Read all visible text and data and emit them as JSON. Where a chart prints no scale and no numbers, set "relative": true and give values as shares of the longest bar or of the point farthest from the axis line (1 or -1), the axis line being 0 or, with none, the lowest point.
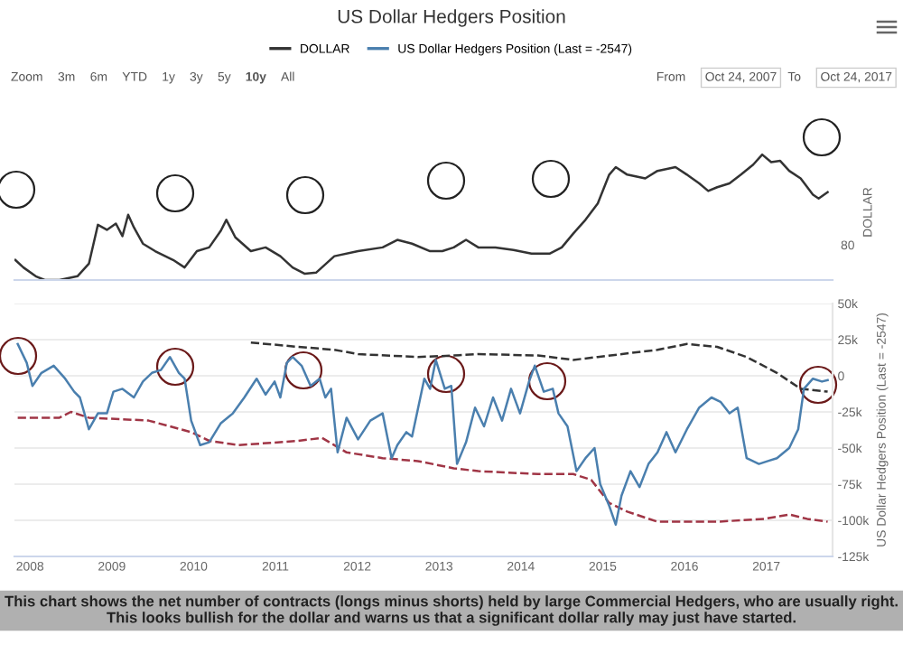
{
  "chart_data": [
    {
      "type": "line",
      "title": "US Dollar Hedgers Position",
      "ylabel": "DOLLAR",
      "relative": true,
      "legend": "top",
      "tick_labels": false,
      "annotations": [
        "80",
        "Zoom",
        "3m",
        "6m",
        "YTD",
        "1y",
        "3y",
        "5y",
        "10y",
        "All",
        "From",
        "Oct 24, 2007",
        "To",
        "Oct 24, 2017"
      ],
      "xlim": [
        2007.81,
        2017.81
      ],
      "xticks": [
        2008,
        2009,
        2010,
        2011,
        2012,
        2013,
        2014,
        2015,
        2016,
        2017
      ],
      "series": [
        {
          "name": "DOLLAR",
          "color": "#333333",
          "line_style": "solid",
          "x": [
            2007.82,
            2007.92,
            2008.07,
            2008.18,
            2008.36,
            2008.58,
            2008.72,
            2008.83,
            2008.94,
            2009.05,
            2009.13,
            2009.2,
            2009.27,
            2009.38,
            2009.53,
            2009.75,
            2009.89,
            2010.04,
            2010.19,
            2010.33,
            2010.4,
            2010.51,
            2010.7,
            2010.88,
            2011.06,
            2011.21,
            2011.36,
            2011.5,
            2011.72,
            2012.01,
            2012.31,
            2012.49,
            2012.67,
            2012.89,
            2013.04,
            2013.18,
            2013.33,
            2013.48,
            2013.69,
            2013.91,
            2014.13,
            2014.35,
            2014.5,
            2014.64,
            2014.79,
            2014.94,
            2015.08,
            2015.16,
            2015.3,
            2015.52,
            2015.67,
            2015.89,
            2016.03,
            2016.18,
            2016.29,
            2016.4,
            2016.55,
            2016.69,
            2016.84,
            2016.95,
            2017.06,
            2017.17,
            2017.28,
            2017.42,
            2017.57,
            2017.64,
            2017.75
          ],
          "values": [
            0.16,
            0.1,
            0.03,
            0,
            0,
            0.03,
            0.13,
            0.44,
            0.4,
            0.45,
            0.35,
            0.52,
            0.42,
            0.29,
            0.23,
            0.16,
            0.1,
            0.23,
            0.26,
            0.39,
            0.48,
            0.34,
            0.23,
            0.26,
            0.19,
            0.1,
            0.05,
            0.06,
            0.19,
            0.23,
            0.26,
            0.32,
            0.29,
            0.23,
            0.23,
            0.26,
            0.32,
            0.26,
            0.26,
            0.24,
            0.21,
            0.21,
            0.26,
            0.37,
            0.48,
            0.61,
            0.84,
            0.9,
            0.84,
            0.81,
            0.87,
            0.9,
            0.84,
            0.77,
            0.71,
            0.74,
            0.77,
            0.84,
            0.92,
            1,
            0.94,
            0.95,
            0.87,
            0.81,
            0.68,
            0.65,
            0.7
          ]
        }
      ]
    },
    {
      "type": "line",
      "ylabel": "US Dollar Hedgers Position (Last = -2547)",
      "legend": "top",
      "grid": "y",
      "annotations": [
        "This chart shows the net number of contracts (longs minus shorts) held by large Commercial Hedgers, who are usually right. This looks bullish for the dollar and warns us that a significant dollar rally may just have started."
      ],
      "xlim": [
        2007.81,
        2017.81
      ],
      "xticks": [
        2008,
        2009,
        2010,
        2011,
        2012,
        2013,
        2014,
        2015,
        2016,
        2017
      ],
      "ylim": [
        -125000,
        50000
      ],
      "yticks": [
        {
          "value": 50000,
          "label": "50k"
        },
        {
          "value": 25000,
          "label": "25k"
        },
        0,
        {
          "value": -25000,
          "label": "-25k"
        },
        {
          "value": -50000,
          "label": "-50k"
        },
        {
          "value": -75000,
          "label": "-75k"
        },
        {
          "value": -100000,
          "label": "-100k"
        },
        {
          "value": -125000,
          "label": "-125k"
        }
      ],
      "series": [
        {
          "color": "#a03545",
          "line_style": "dashed",
          "x": [
            2007.85,
            2008.36,
            2008.5,
            2008.72,
            2009.45,
            2009.97,
            2010.19,
            2010.55,
            2011.28,
            2011.57,
            2011.87,
            2012.31,
            2012.74,
            2013.18,
            2013.48,
            2014.21,
            2014.64,
            2014.86,
            2015.08,
            2015.3,
            2015.67,
            2016.4,
            2016.98,
            2017.28,
            2017.5,
            2017.75
          ],
          "values": [
            -29000,
            -29000,
            -25000,
            -29000,
            -31000,
            -39000,
            -45000,
            -48000,
            -45000,
            -43000,
            -53000,
            -57000,
            -59000,
            -64000,
            -66000,
            -68000,
            -68000,
            -72000,
            -88000,
            -94000,
            -101000,
            -101000,
            -99000,
            -96000,
            -99000,
            -101000
          ]
        },
        {
          "color": "#333333",
          "line_style": "dashed",
          "x": [
            2010.7,
            2011.28,
            2011.72,
            2012.01,
            2012.74,
            2013.18,
            2013.48,
            2014.21,
            2014.64,
            2014.94,
            2015.67,
            2016.03,
            2016.4,
            2016.76,
            2017.13,
            2017.42,
            2017.75
          ],
          "values": [
            23000,
            20000,
            18000,
            15000,
            13000,
            14000,
            15000,
            14000,
            11000,
            13000,
            18000,
            22000,
            20000,
            13000,
            2000,
            -9000,
            -11000
          ]
        },
        {
          "name": "US Dollar Hedgers Position (Last = -2547)",
          "color": "#4a7fae",
          "line_style": "solid",
          "x": [
            2007.85,
            2007.96,
            2008.03,
            2008.14,
            2008.29,
            2008.43,
            2008.54,
            2008.61,
            2008.72,
            2008.83,
            2008.94,
            2009.02,
            2009.13,
            2009.27,
            2009.38,
            2009.49,
            2009.6,
            2009.71,
            2009.82,
            2009.89,
            2009.97,
            2010.08,
            2010.19,
            2010.33,
            2010.48,
            2010.62,
            2010.77,
            2010.88,
            2010.99,
            2011.06,
            2011.14,
            2011.21,
            2011.32,
            2011.43,
            2011.54,
            2011.61,
            2011.68,
            2011.76,
            2011.87,
            2012.01,
            2012.16,
            2012.31,
            2012.42,
            2012.49,
            2012.6,
            2012.67,
            2012.82,
            2012.89,
            2012.96,
            2013.07,
            2013.15,
            2013.22,
            2013.33,
            2013.44,
            2013.55,
            2013.66,
            2013.77,
            2013.88,
            2013.99,
            2014.1,
            2014.17,
            2014.28,
            2014.39,
            2014.46,
            2014.57,
            2014.68,
            2014.79,
            2014.9,
            2014.97,
            2015.08,
            2015.16,
            2015.23,
            2015.34,
            2015.45,
            2015.56,
            2015.67,
            2015.78,
            2015.89,
            2016.03,
            2016.18,
            2016.33,
            2016.44,
            2016.55,
            2016.65,
            2016.76,
            2016.91,
            2017.02,
            2017.13,
            2017.28,
            2017.39,
            2017.46,
            2017.57,
            2017.68,
            2017.75
          ],
          "values": [
            22000,
            9000,
            -7000,
            2000,
            7000,
            -2000,
            -11000,
            -15000,
            -37000,
            -26000,
            -26000,
            -11000,
            -9000,
            -15000,
            -4000,
            2000,
            4000,
            13000,
            2000,
            -2000,
            -31000,
            -48000,
            -46000,
            -33000,
            -26000,
            -15000,
            -2000,
            -13000,
            -4000,
            -15000,
            9000,
            13000,
            7000,
            -7000,
            -2000,
            -15000,
            -9000,
            -53000,
            -29000,
            -44000,
            -31000,
            -26000,
            -57000,
            -48000,
            -39000,
            -42000,
            -2000,
            -9000,
            11000,
            -9000,
            -7000,
            -61000,
            -46000,
            -22000,
            -35000,
            -15000,
            -31000,
            -9000,
            -26000,
            -4000,
            7000,
            -11000,
            -9000,
            -26000,
            -35000,
            -66000,
            -57000,
            -50000,
            -75000,
            -90000,
            -103000,
            -83000,
            -66000,
            -77000,
            -61000,
            -53000,
            -39000,
            -53000,
            -37000,
            -22000,
            -15000,
            -18000,
            -26000,
            -22000,
            -57000,
            -61000,
            -59000,
            -57000,
            -50000,
            -37000,
            -9000,
            -2000,
            -4000,
            -3000
          ]
        }
      ]
    }
  ]
}
